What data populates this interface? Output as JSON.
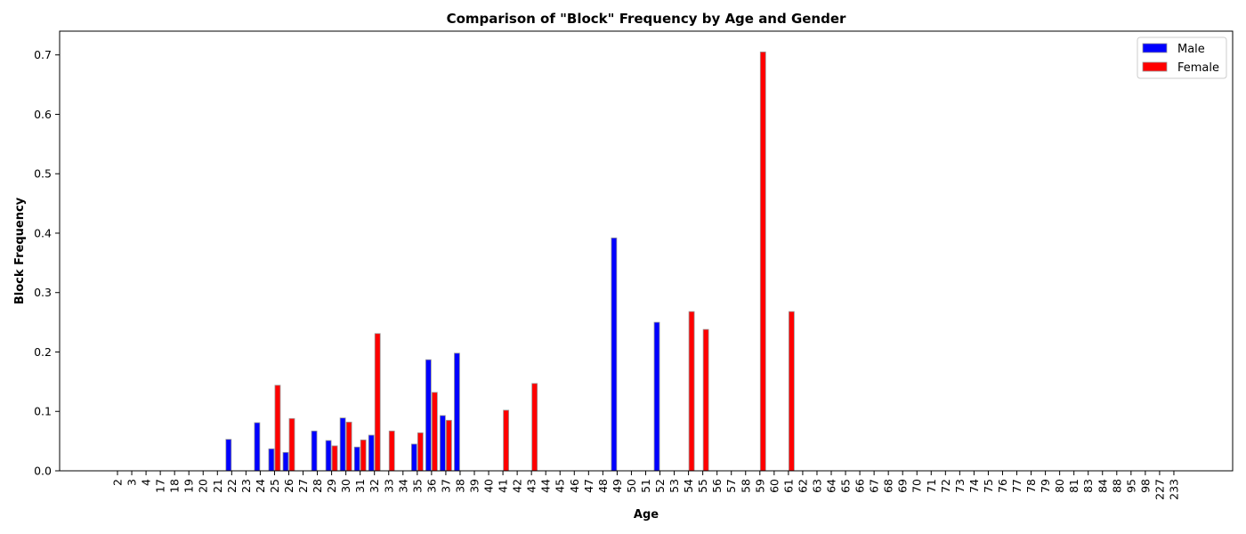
{
  "chart_data": {
    "type": "bar",
    "title": "Comparison of \"Block\" Frequency by Age and Gender",
    "xlabel": "Age",
    "ylabel": "Block Frequency",
    "ylim": [
      0,
      0.74
    ],
    "yticks": [
      "0.0",
      "0.1",
      "0.2",
      "0.3",
      "0.4",
      "0.5",
      "0.6",
      "0.7"
    ],
    "categories": [
      "2",
      "3",
      "4",
      "17",
      "18",
      "19",
      "20",
      "21",
      "22",
      "23",
      "24",
      "25",
      "26",
      "27",
      "28",
      "29",
      "30",
      "31",
      "32",
      "33",
      "34",
      "35",
      "36",
      "37",
      "38",
      "39",
      "40",
      "41",
      "42",
      "43",
      "44",
      "45",
      "46",
      "47",
      "48",
      "49",
      "50",
      "51",
      "52",
      "53",
      "54",
      "55",
      "56",
      "57",
      "58",
      "59",
      "60",
      "61",
      "62",
      "63",
      "64",
      "65",
      "66",
      "67",
      "68",
      "69",
      "70",
      "71",
      "72",
      "73",
      "74",
      "75",
      "76",
      "77",
      "78",
      "79",
      "80",
      "81",
      "83",
      "84",
      "88",
      "95",
      "98",
      "227",
      "233"
    ],
    "series": [
      {
        "name": "Male",
        "color": "#0000ff",
        "values": [
          0,
          0,
          0,
          0,
          0,
          0,
          0,
          0,
          0.053,
          0,
          0.081,
          0.037,
          0.031,
          0,
          0.067,
          0.051,
          0.089,
          0.04,
          0.06,
          0,
          0,
          0.045,
          0.187,
          0.093,
          0.198,
          0,
          0,
          0,
          0,
          0,
          0,
          0,
          0,
          0,
          0,
          0.392,
          0,
          0,
          0.25,
          0,
          0,
          0,
          0,
          0,
          0,
          0,
          0,
          0,
          0,
          0,
          0,
          0,
          0,
          0,
          0,
          0,
          0,
          0,
          0,
          0,
          0,
          0,
          0,
          0,
          0,
          0,
          0,
          0,
          0,
          0,
          0,
          0,
          0,
          0,
          0
        ]
      },
      {
        "name": "Female",
        "color": "#ff0000",
        "values": [
          0,
          0,
          0,
          0,
          0,
          0,
          0,
          0,
          0,
          0,
          0,
          0.144,
          0.088,
          0,
          0,
          0.042,
          0.082,
          0.052,
          0.231,
          0.067,
          0,
          0.064,
          0.132,
          0.085,
          0,
          0,
          0,
          0.102,
          0,
          0.147,
          0,
          0,
          0,
          0,
          0,
          0,
          0,
          0,
          0,
          0,
          0.268,
          0.238,
          0,
          0,
          0,
          0.705,
          0,
          0.268,
          0,
          0,
          0,
          0,
          0,
          0,
          0,
          0,
          0,
          0,
          0,
          0,
          0,
          0,
          0,
          0,
          0,
          0,
          0,
          0,
          0,
          0,
          0,
          0,
          0,
          0,
          0
        ]
      }
    ],
    "grid": false,
    "legend": "top-right"
  }
}
